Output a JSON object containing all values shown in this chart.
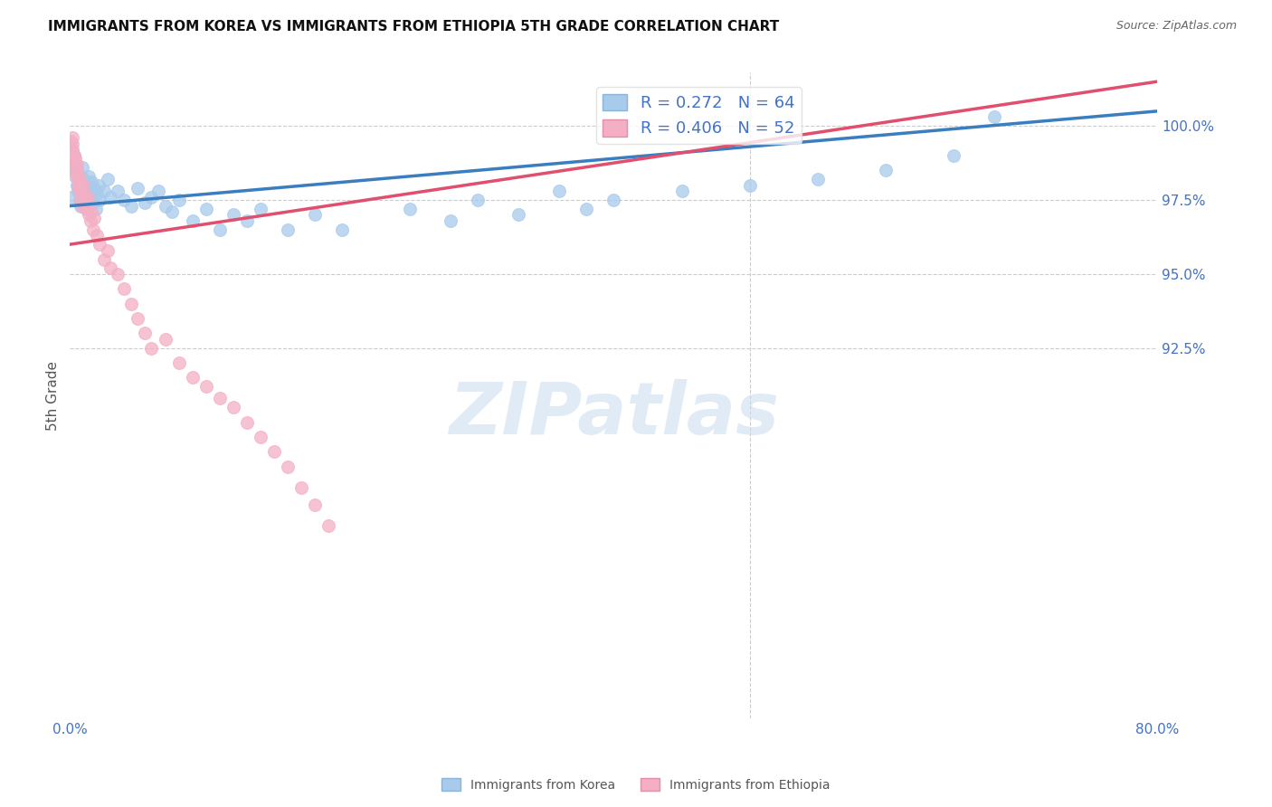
{
  "title": "IMMIGRANTS FROM KOREA VS IMMIGRANTS FROM ETHIOPIA 5TH GRADE CORRELATION CHART",
  "source": "Source: ZipAtlas.com",
  "ylabel": "5th Grade",
  "legend_korea": "Immigrants from Korea",
  "legend_ethiopia": "Immigrants from Ethiopia",
  "korea_R": 0.272,
  "korea_N": 64,
  "ethiopia_R": 0.406,
  "ethiopia_N": 52,
  "korea_color": "#a8caeb",
  "ethiopia_color": "#f4afc4",
  "korea_line_color": "#3a7ebf",
  "ethiopia_line_color": "#e0506e",
  "axis_color": "#4472c4",
  "watermark": "ZIPatlas",
  "x_min": 0.0,
  "x_max": 80.0,
  "y_min": 80.0,
  "y_max": 101.8,
  "y_ticks": [
    92.5,
    95.0,
    97.5,
    100.0
  ],
  "korea_x": [
    0.1,
    0.2,
    0.2,
    0.3,
    0.3,
    0.4,
    0.4,
    0.5,
    0.5,
    0.6,
    0.6,
    0.7,
    0.7,
    0.8,
    0.9,
    1.0,
    1.0,
    1.1,
    1.2,
    1.3,
    1.4,
    1.5,
    1.6,
    1.7,
    1.8,
    1.9,
    2.0,
    2.1,
    2.2,
    2.5,
    2.8,
    3.0,
    3.5,
    4.0,
    4.5,
    5.0,
    5.5,
    6.0,
    6.5,
    7.0,
    7.5,
    8.0,
    9.0,
    10.0,
    11.0,
    12.0,
    13.0,
    14.0,
    16.0,
    18.0,
    20.0,
    25.0,
    28.0,
    30.0,
    33.0,
    36.0,
    38.0,
    40.0,
    45.0,
    50.0,
    55.0,
    60.0,
    65.0,
    68.0
  ],
  "korea_y": [
    97.6,
    98.8,
    99.2,
    98.5,
    99.0,
    98.3,
    98.7,
    98.0,
    98.5,
    97.8,
    98.4,
    97.5,
    98.1,
    97.3,
    98.6,
    97.8,
    98.2,
    98.0,
    97.6,
    97.9,
    98.3,
    97.7,
    98.1,
    97.4,
    97.9,
    97.2,
    97.7,
    98.0,
    97.5,
    97.8,
    98.2,
    97.6,
    97.8,
    97.5,
    97.3,
    97.9,
    97.4,
    97.6,
    97.8,
    97.3,
    97.1,
    97.5,
    96.8,
    97.2,
    96.5,
    97.0,
    96.8,
    97.2,
    96.5,
    97.0,
    96.5,
    97.2,
    96.8,
    97.5,
    97.0,
    97.8,
    97.2,
    97.5,
    97.8,
    98.0,
    98.2,
    98.5,
    99.0,
    100.3
  ],
  "ethiopia_x": [
    0.05,
    0.1,
    0.15,
    0.2,
    0.2,
    0.3,
    0.3,
    0.4,
    0.4,
    0.5,
    0.5,
    0.6,
    0.6,
    0.7,
    0.7,
    0.8,
    0.8,
    0.9,
    1.0,
    1.0,
    1.1,
    1.2,
    1.3,
    1.4,
    1.5,
    1.6,
    1.7,
    1.8,
    2.0,
    2.2,
    2.5,
    2.8,
    3.0,
    3.5,
    4.0,
    4.5,
    5.0,
    5.5,
    6.0,
    7.0,
    8.0,
    9.0,
    10.0,
    11.0,
    12.0,
    13.0,
    14.0,
    15.0,
    16.0,
    17.0,
    18.0,
    19.0
  ],
  "ethiopia_y": [
    99.5,
    99.2,
    99.4,
    99.1,
    99.6,
    98.8,
    99.0,
    98.5,
    98.9,
    98.3,
    98.7,
    98.0,
    98.4,
    97.8,
    98.2,
    97.5,
    97.9,
    97.3,
    97.7,
    98.0,
    97.5,
    97.2,
    97.6,
    97.0,
    96.8,
    97.1,
    96.5,
    96.9,
    96.3,
    96.0,
    95.5,
    95.8,
    95.2,
    95.0,
    94.5,
    94.0,
    93.5,
    93.0,
    92.5,
    92.8,
    92.0,
    91.5,
    91.2,
    90.8,
    90.5,
    90.0,
    89.5,
    89.0,
    88.5,
    87.8,
    87.2,
    86.5
  ]
}
